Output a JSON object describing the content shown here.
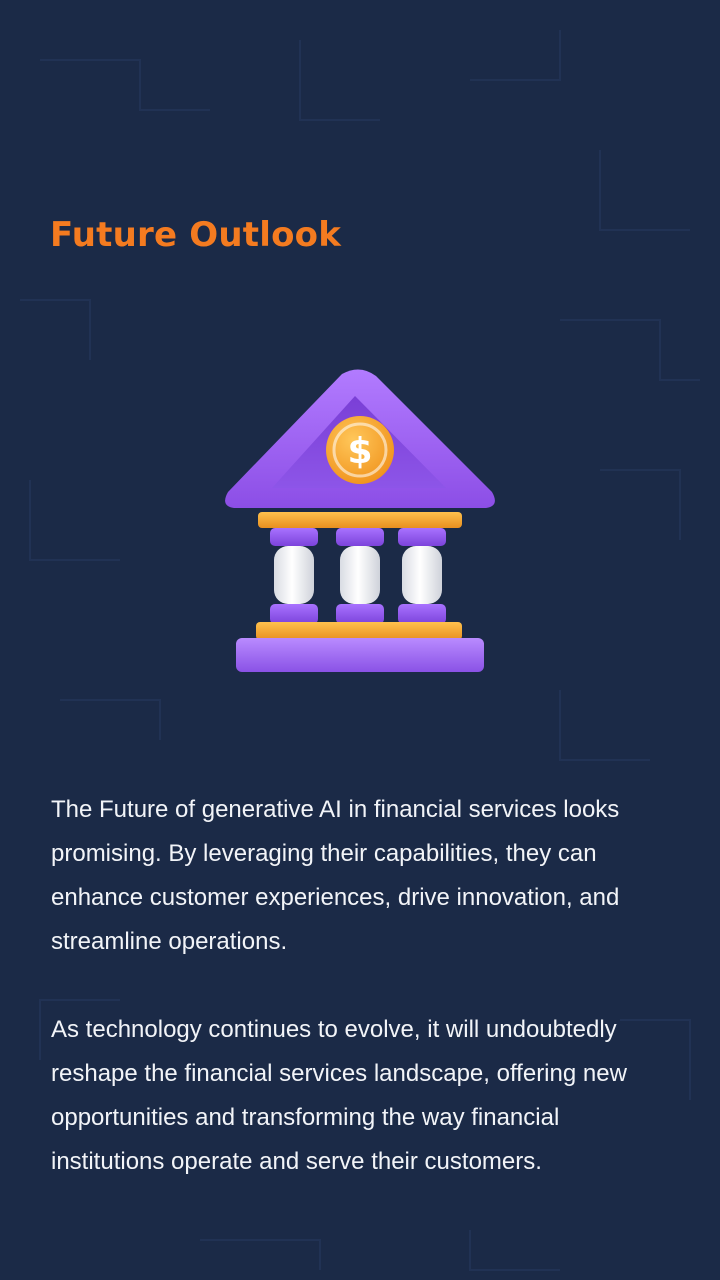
{
  "page": {
    "title": "Future Outlook",
    "paragraphs": [
      "The Future of generative AI in financial services looks promising. By leveraging their capabilities, they can enhance customer experiences, drive innovation, and streamline operations.",
      "As technology continues to evolve, it will undoubtedly reshape the financial services landscape, offering new opportunities and transforming the way financial institutions operate and serve their customers."
    ]
  },
  "illustration": {
    "icon": "bank-icon",
    "coin_symbol": "$"
  },
  "colors": {
    "background": "#1b2a47",
    "title": "#f47b20",
    "text": "#f2f4f8",
    "roof": "#9b5cf0",
    "beam": "#f2a93b",
    "pillar": "#f4f4f6",
    "coin": "#f5a623"
  }
}
